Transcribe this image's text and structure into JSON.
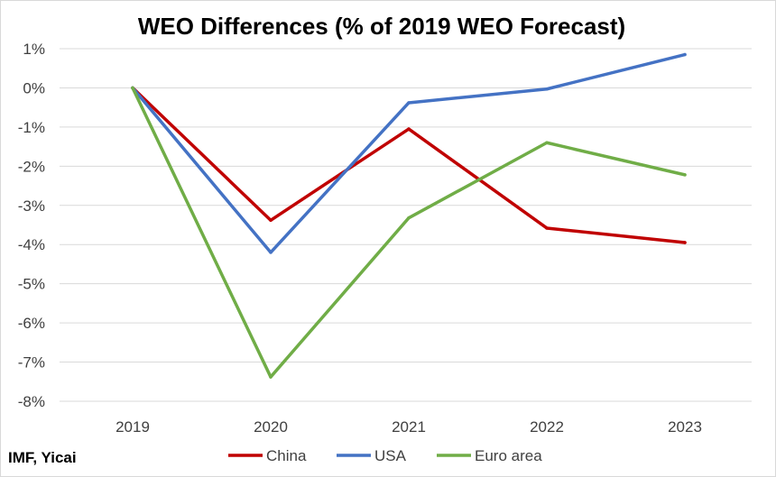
{
  "chart_data": {
    "type": "line",
    "title": "WEO Differences (% of 2019 WEO Forecast)",
    "categories": [
      "2019",
      "2020",
      "2021",
      "2022",
      "2023"
    ],
    "series": [
      {
        "name": "China",
        "color": "#c00000",
        "values": [
          0,
          -3.38,
          -1.05,
          -3.58,
          -3.95
        ]
      },
      {
        "name": "USA",
        "color": "#4472c4",
        "values": [
          0,
          -4.2,
          -0.38,
          -0.03,
          0.85
        ]
      },
      {
        "name": "Euro area",
        "color": "#70ad47",
        "values": [
          0,
          -7.38,
          -3.32,
          -1.4,
          -2.22
        ]
      }
    ],
    "ylim": [
      -8,
      1
    ],
    "yticks": [
      1,
      0,
      -1,
      -2,
      -3,
      -4,
      -5,
      -6,
      -7,
      -8
    ],
    "ytick_labels": [
      "1%",
      "0%",
      "-1%",
      "-2%",
      "-3%",
      "-4%",
      "-5%",
      "-6%",
      "-7%",
      "-8%"
    ],
    "grid": true,
    "legend": "bottom"
  },
  "source": "IMF, Yicai"
}
